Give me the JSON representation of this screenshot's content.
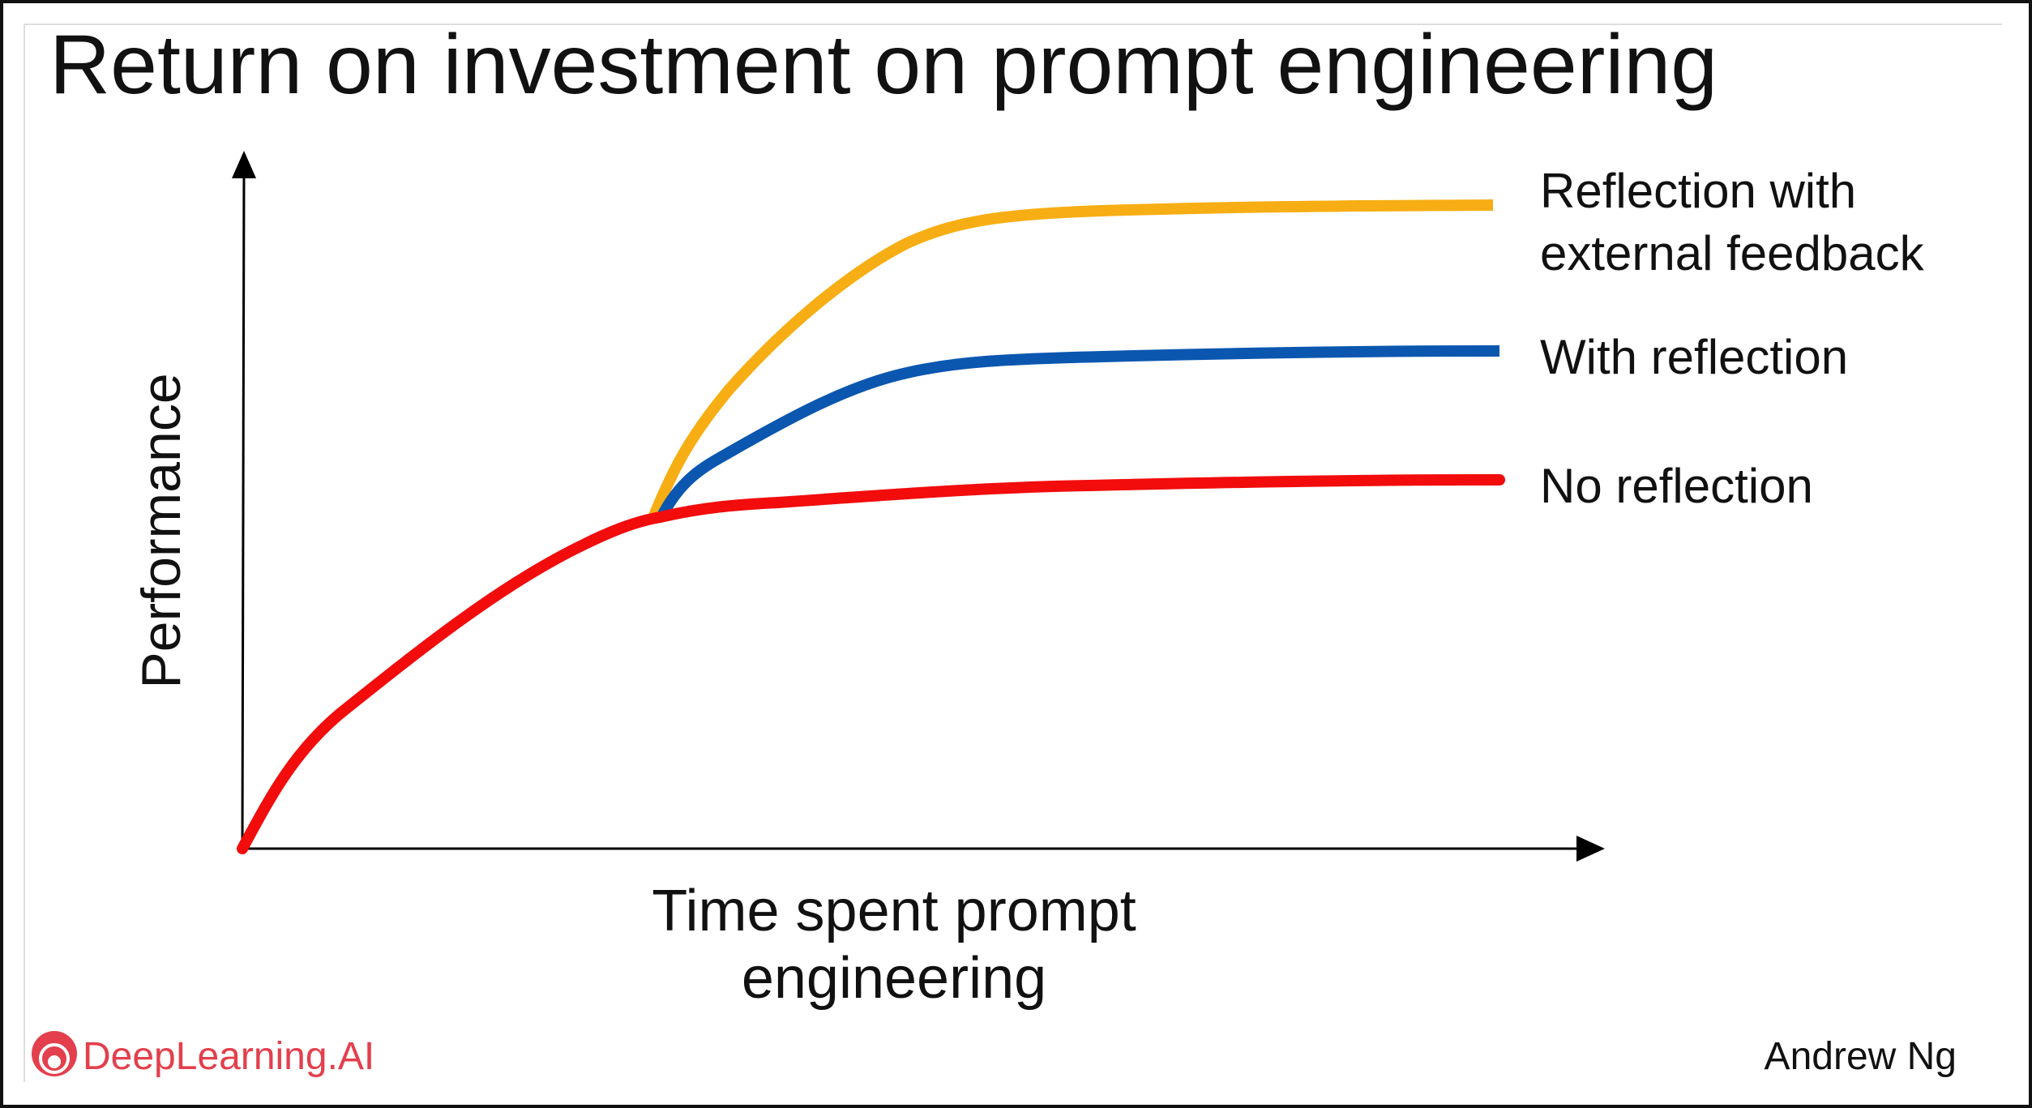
{
  "title": "Return on investment on prompt engineering",
  "y_axis_label": "Performance",
  "x_axis_label": [
    "Time spent prompt",
    "engineering"
  ],
  "curves": [
    {
      "label": [
        "Reflection with",
        "external feedback"
      ]
    },
    {
      "label": [
        "With reflection"
      ]
    },
    {
      "label": [
        "No reflection"
      ]
    }
  ],
  "footer": {
    "logo": "DeepLearning.AI",
    "author": "Andrew Ng"
  }
}
